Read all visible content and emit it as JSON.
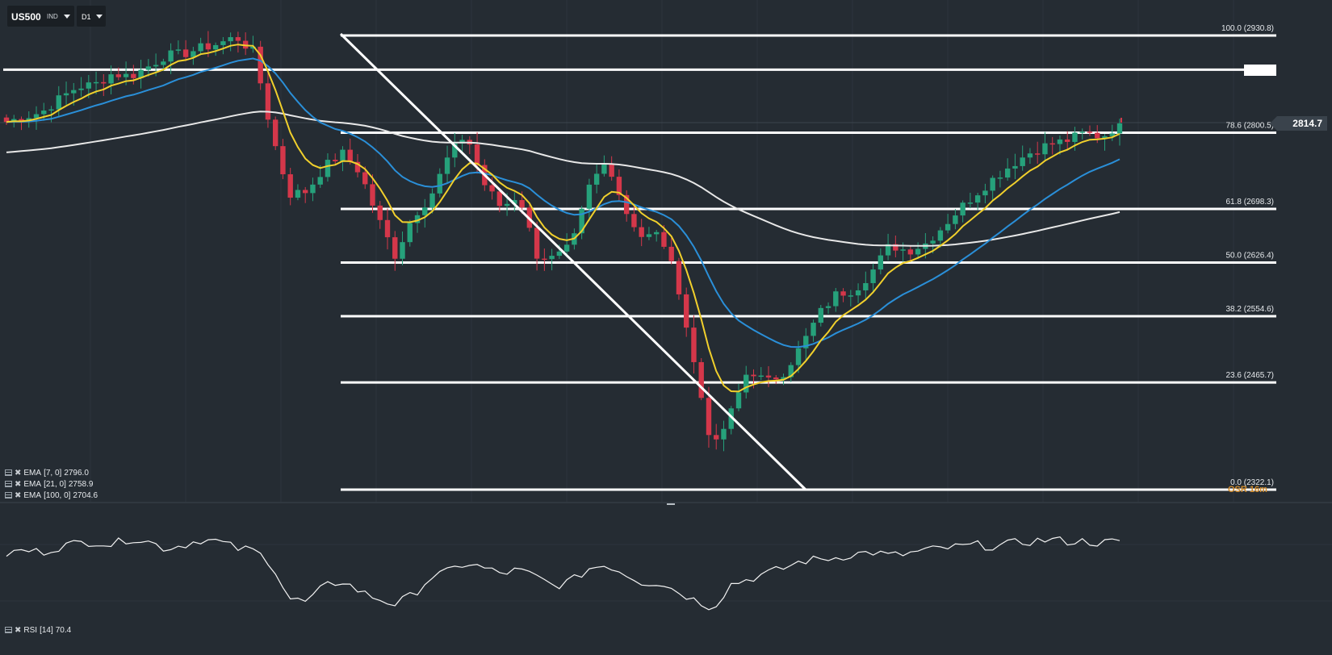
{
  "header": {
    "symbol": "US500",
    "symbol_type": "IND",
    "timeframe": "D1"
  },
  "last_price_label": "2814.7",
  "osr_label": "OSR 16m",
  "indicators": [
    {
      "label": "EMA",
      "params": "[7, 0]",
      "value": "2796.0",
      "color": "#f1d02c"
    },
    {
      "label": "EMA",
      "params": "[21, 0]",
      "value": "2758.9",
      "color": "#2a8fd8"
    },
    {
      "label": "EMA",
      "params": "[100, 0]",
      "value": "2704.6",
      "color": "#e8e8e8"
    }
  ],
  "rsi_legend": {
    "label": "RSI",
    "params": "[14]",
    "value": "70.4"
  },
  "chart_data": {
    "type": "candlestick",
    "symbol": "US500",
    "timeframe": "D1",
    "y_range": [
      2300,
      2950
    ],
    "colors": {
      "up": "#26a17b",
      "down": "#d4374a",
      "ema7": "#f1d02c",
      "ema21": "#2a8fd8",
      "ema100": "#e8e8e8",
      "fib": "#ffffff"
    },
    "fibonacci_levels": [
      {
        "label": "100.0 (2930.8)",
        "level": 100.0,
        "price": 2930.8
      },
      {
        "label": "78.6 (2800.5)",
        "level": 78.6,
        "price": 2800.5
      },
      {
        "label": "61.8 (2698.3)",
        "level": 61.8,
        "price": 2698.3
      },
      {
        "label": "50.0 (2626.4)",
        "level": 50.0,
        "price": 2626.4
      },
      {
        "label": "38.2 (2554.6)",
        "level": 38.2,
        "price": 2554.6
      },
      {
        "label": "23.6 (2465.7)",
        "level": 23.6,
        "price": 2465.7
      },
      {
        "label": "0.0 (2322.1)",
        "level": 0.0,
        "price": 2322.1
      }
    ],
    "horizontal_line_price": 2885,
    "ema7_last": 2796.0,
    "ema21_last": 2758.9,
    "ema100_last": 2704.6,
    "close_anchors": [
      2815,
      2822,
      2828,
      2846,
      2862,
      2865,
      2880,
      2876,
      2889,
      2904,
      2906,
      2914,
      2920,
      2929,
      2908,
      2800,
      2718,
      2722,
      2755,
      2773,
      2748,
      2687,
      2636,
      2689,
      2715,
      2768,
      2800,
      2733,
      2700,
      2718,
      2637,
      2631,
      2649,
      2729,
      2765,
      2697,
      2660,
      2665,
      2597,
      2480,
      2374,
      2425,
      2485,
      2465,
      2480,
      2515,
      2558,
      2585,
      2590,
      2615,
      2650,
      2642,
      2652,
      2675,
      2700,
      2722,
      2742,
      2760,
      2775,
      2785,
      2790,
      2800,
      2795,
      2813
    ],
    "rsi": {
      "period": 14,
      "last": 70.4,
      "anchors": [
        63,
        65,
        64,
        67,
        69,
        70,
        68,
        72,
        70,
        66,
        68,
        71,
        70,
        66,
        65,
        58,
        38,
        36,
        45,
        48,
        42,
        38,
        35,
        40,
        50,
        53,
        58,
        55,
        52,
        54,
        50,
        45,
        48,
        55,
        57,
        52,
        47,
        47,
        42,
        37,
        33,
        46,
        49,
        52,
        55,
        59,
        60,
        61,
        63,
        64,
        62,
        63,
        65,
        66,
        67,
        68,
        67,
        69,
        70,
        71,
        70,
        70,
        69,
        70.4
      ]
    }
  }
}
